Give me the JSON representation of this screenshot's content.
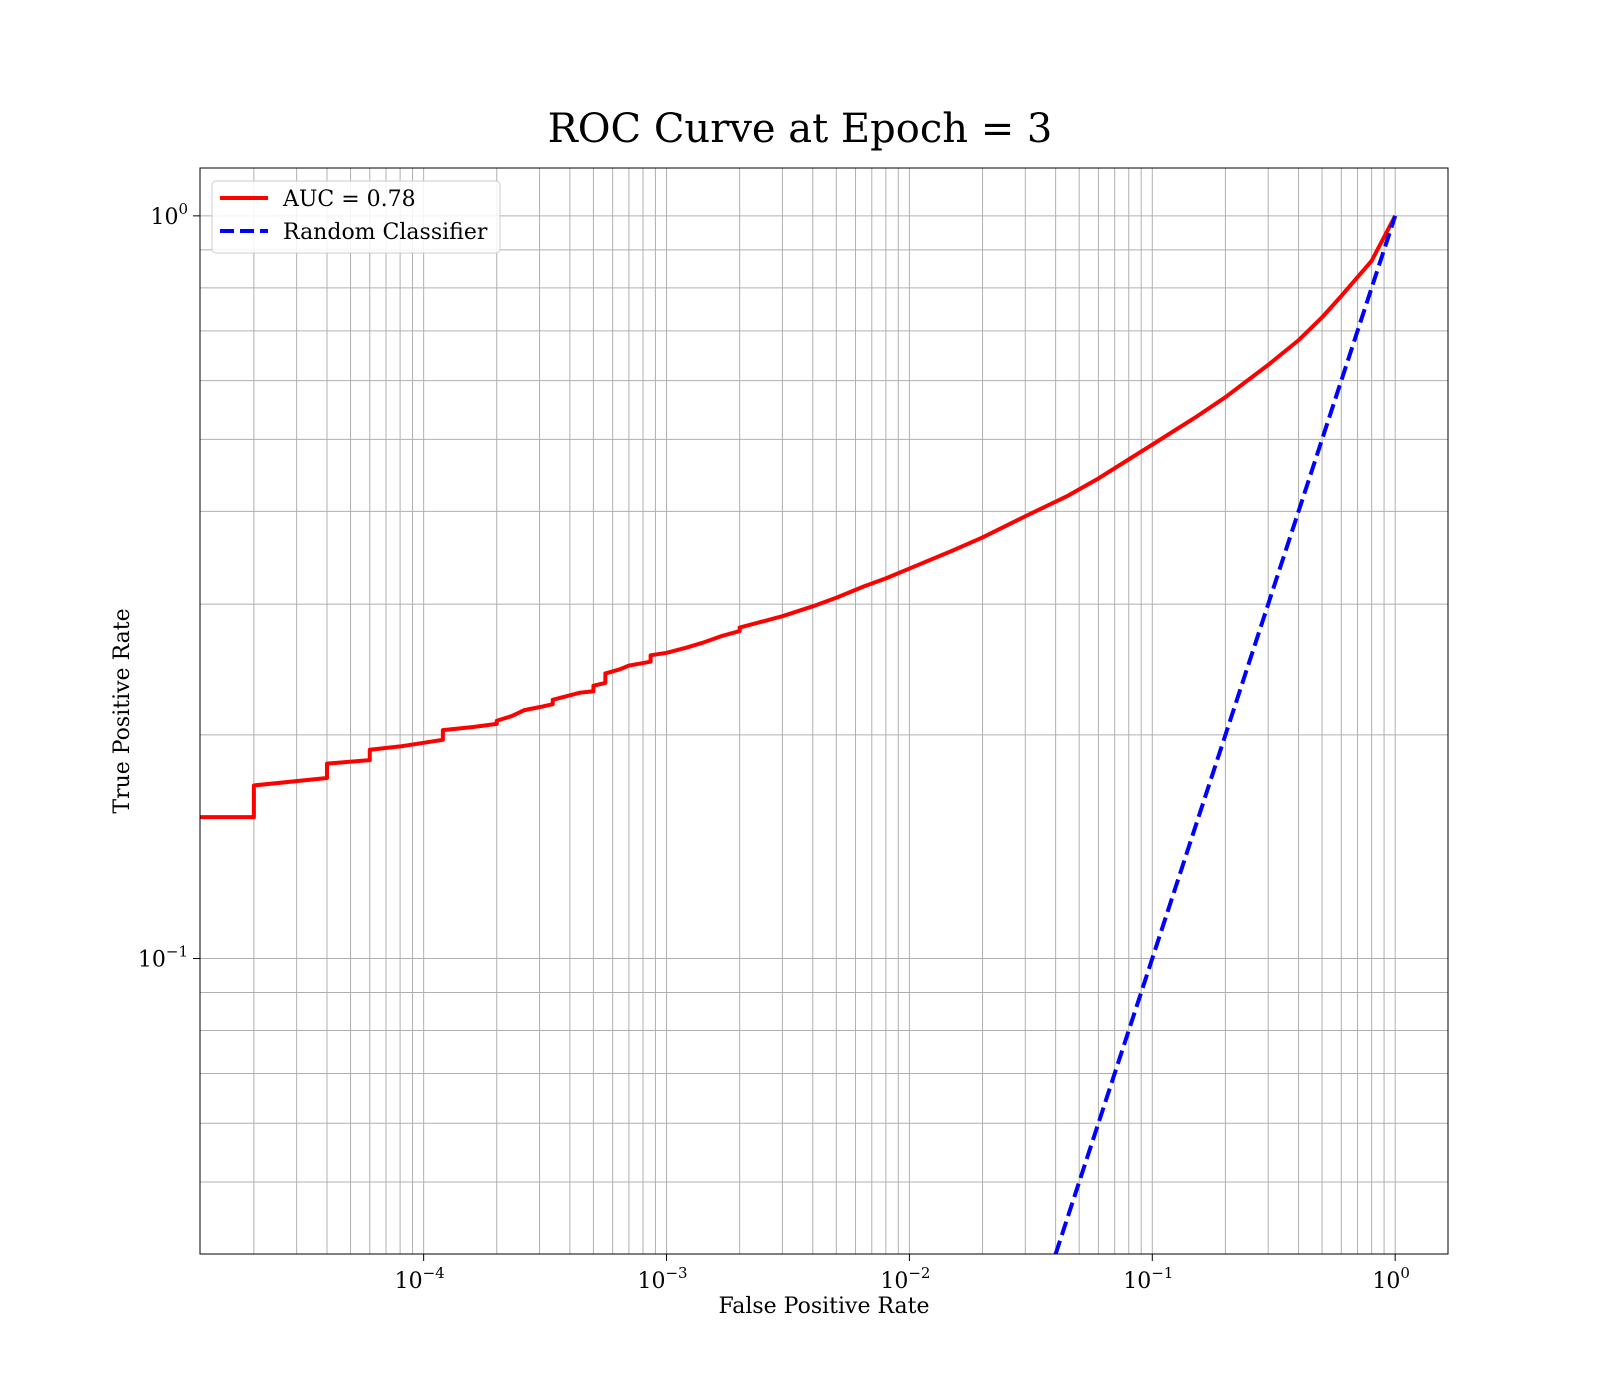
{
  "chart_data": {
    "type": "line",
    "title": "ROC Curve at Epoch = 3",
    "xlabel": "False Positive Rate",
    "ylabel": "True Positive Rate",
    "xscale": "log",
    "yscale": "log",
    "xlim": [
      1.2e-05,
      1.65
    ],
    "ylim": [
      0.04,
      1.16
    ],
    "grid": true,
    "grid_which": "both",
    "legend_position": "top-left",
    "x_ticks": [
      {
        "value": 0.0001,
        "base": "10",
        "exp": "−4"
      },
      {
        "value": 0.001,
        "base": "10",
        "exp": "−3"
      },
      {
        "value": 0.01,
        "base": "10",
        "exp": "−2"
      },
      {
        "value": 0.1,
        "base": "10",
        "exp": "−1"
      },
      {
        "value": 1,
        "base": "10",
        "exp": "0"
      }
    ],
    "y_ticks": [
      {
        "value": 0.1,
        "base": "10",
        "exp": "−1"
      },
      {
        "value": 1,
        "base": "10",
        "exp": "0"
      }
    ],
    "series": [
      {
        "name": "AUC = 0.78",
        "color": "#ff0000",
        "style": "solid",
        "step": true,
        "points": [
          [
            1.2e-05,
            0.155
          ],
          [
            2e-05,
            0.155
          ],
          [
            2e-05,
            0.171
          ],
          [
            4e-05,
            0.175
          ],
          [
            4e-05,
            0.183
          ],
          [
            6e-05,
            0.185
          ],
          [
            6e-05,
            0.191
          ],
          [
            8e-05,
            0.193
          ],
          [
            0.00012,
            0.197
          ],
          [
            0.00012,
            0.203
          ],
          [
            0.00016,
            0.205
          ],
          [
            0.0002,
            0.207
          ],
          [
            0.0002,
            0.209
          ],
          [
            0.00023,
            0.212
          ],
          [
            0.00026,
            0.216
          ],
          [
            0.0003,
            0.218
          ],
          [
            0.00034,
            0.22
          ],
          [
            0.00034,
            0.223
          ],
          [
            0.00044,
            0.228
          ],
          [
            0.0005,
            0.229
          ],
          [
            0.0005,
            0.233
          ],
          [
            0.00056,
            0.235
          ],
          [
            0.00056,
            0.242
          ],
          [
            0.00064,
            0.245
          ],
          [
            0.0007,
            0.248
          ],
          [
            0.00086,
            0.251
          ],
          [
            0.00086,
            0.256
          ],
          [
            0.001,
            0.258
          ],
          [
            0.0012,
            0.262
          ],
          [
            0.0014,
            0.266
          ],
          [
            0.0017,
            0.272
          ],
          [
            0.002,
            0.276
          ],
          [
            0.002,
            0.279
          ],
          [
            0.003,
            0.289
          ],
          [
            0.004,
            0.298
          ],
          [
            0.005,
            0.306
          ],
          [
            0.0065,
            0.317
          ],
          [
            0.008,
            0.325
          ],
          [
            0.01,
            0.335
          ],
          [
            0.015,
            0.354
          ],
          [
            0.02,
            0.369
          ],
          [
            0.03,
            0.394
          ],
          [
            0.045,
            0.42
          ],
          [
            0.06,
            0.443
          ],
          [
            0.08,
            0.47
          ],
          [
            0.1,
            0.492
          ],
          [
            0.15,
            0.535
          ],
          [
            0.2,
            0.57
          ],
          [
            0.3,
            0.63
          ],
          [
            0.4,
            0.68
          ],
          [
            0.5,
            0.73
          ],
          [
            0.6,
            0.78
          ],
          [
            0.8,
            0.87
          ],
          [
            1.0,
            1.0
          ]
        ]
      },
      {
        "name": "Random Classifier",
        "color": "#0000ff",
        "style": "dashed",
        "step": false,
        "points": [
          [
            0.04,
            0.04
          ],
          [
            1.0,
            1.0
          ]
        ]
      }
    ]
  }
}
